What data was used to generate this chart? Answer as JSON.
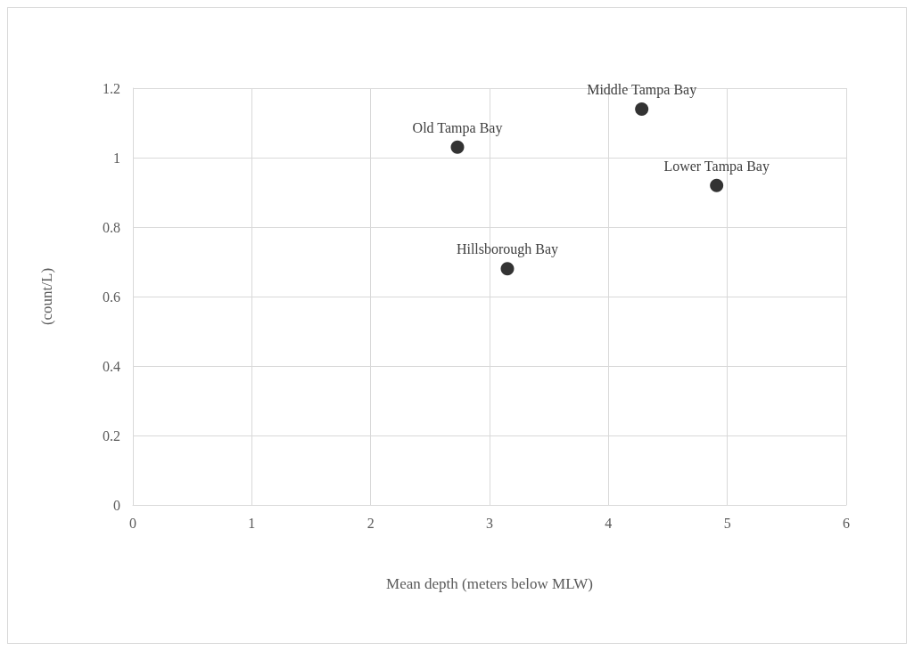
{
  "chart_data": {
    "type": "scatter",
    "xlabel": "Mean depth (meters below MLW)",
    "ylabel": "(count/L)",
    "x": [
      2.73,
      3.15,
      4.28,
      4.91
    ],
    "values": [
      1.03,
      0.68,
      1.14,
      0.92
    ],
    "color": "#000000",
    "marker": "circle",
    "xlim": [
      0,
      6
    ],
    "xticks": [
      0,
      1,
      2,
      3,
      4,
      5,
      6
    ],
    "ylim": [
      0,
      1.2
    ],
    "yticks": [
      0,
      0.2,
      0.4,
      0.6,
      0.8,
      1,
      1.2
    ],
    "grid": true,
    "annotations": [
      {
        "text": "Old Tampa Bay",
        "x": 2.73,
        "y": 1.03
      },
      {
        "text": "Hillsborough Bay",
        "x": 3.15,
        "y": 0.68
      },
      {
        "text": "Middle Tampa Bay",
        "x": 4.28,
        "y": 1.14
      },
      {
        "text": "Lower Tampa Bay",
        "x": 4.91,
        "y": 0.92
      }
    ]
  }
}
